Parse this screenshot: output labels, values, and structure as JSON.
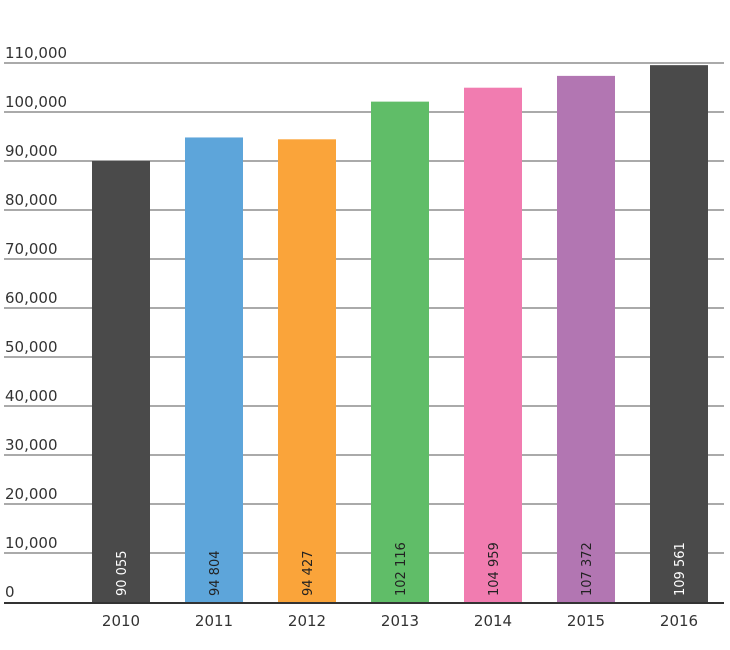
{
  "chart_data": {
    "type": "bar",
    "title": "",
    "xlabel": "",
    "ylabel": "",
    "categories": [
      "2010",
      "2011",
      "2012",
      "2013",
      "2014",
      "2015",
      "2016"
    ],
    "values": [
      90055,
      94804,
      94427,
      102116,
      104959,
      107372,
      109561
    ],
    "data_labels": [
      "90 055",
      "94 804",
      "94 427",
      "102 116",
      "104 959",
      "107 372",
      "109 561"
    ],
    "bar_colors": [
      "#4a4a4a",
      "#5da5da",
      "#faa43a",
      "#60bd68",
      "#f17cb0",
      "#b276b2",
      "#4a4a4a"
    ],
    "label_colors": [
      "#ffffff",
      "#222222",
      "#222222",
      "#222222",
      "#222222",
      "#222222",
      "#ffffff"
    ],
    "ylim": [
      0,
      110000
    ],
    "yticks": [
      0,
      10000,
      20000,
      30000,
      40000,
      50000,
      60000,
      70000,
      80000,
      90000,
      100000,
      110000
    ],
    "ytick_labels": [
      "0",
      "10,000",
      "20,000",
      "30,000",
      "40,000",
      "50,000",
      "60,000",
      "70,000",
      "80,000",
      "90,000",
      "100,000",
      "110,000"
    ],
    "grid": true,
    "legend": "none"
  }
}
